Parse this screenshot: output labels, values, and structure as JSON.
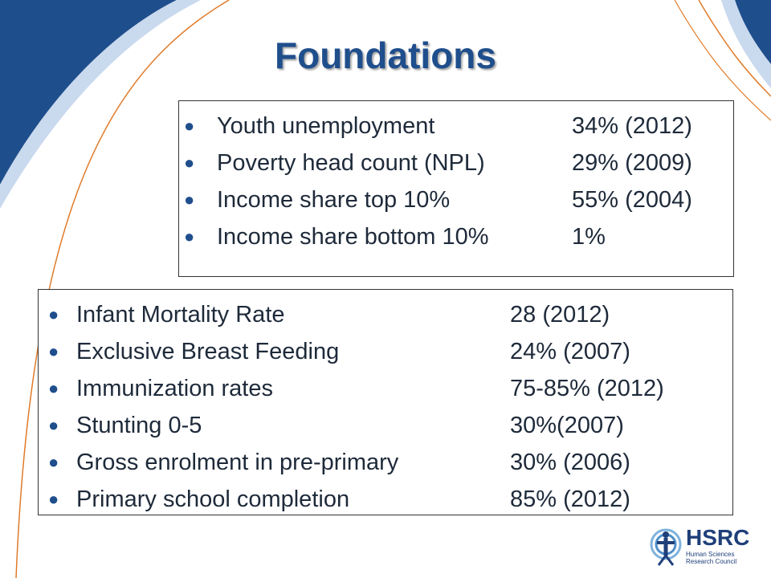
{
  "slide": {
    "title": "Foundations"
  },
  "box_top": {
    "items": [
      {
        "label": "Youth unemployment",
        "value": "34% (2012)"
      },
      {
        "label": "Poverty head count (NPL)",
        "value": "29% (2009)"
      },
      {
        "label": "Income share top 10%",
        "value": "55% (2004)"
      },
      {
        "label": "Income share bottom 10%",
        "value": "1%"
      }
    ]
  },
  "box_bottom": {
    "items": [
      {
        "label": "Infant Mortality Rate",
        "value": "28 (2012)"
      },
      {
        "label": "Exclusive Breast Feeding",
        "value": "24% (2007)"
      },
      {
        "label": "Immunization rates",
        "value": "75-85% (2012)"
      },
      {
        "label": "Stunting 0-5",
        "value": "30%(2007)"
      },
      {
        "label": "Gross enrolment in pre-primary",
        "value": "30% (2006)"
      },
      {
        "label": "Primary school completion",
        "value": "85% (2012)"
      }
    ]
  },
  "logo": {
    "name": "HSRC",
    "line1": "Human Sciences",
    "line2": "Research Council",
    "icon": "hsrc-emblem-icon"
  },
  "colors": {
    "accent_blue": "#1f4e8c",
    "swoosh_orange": "#e07b2a",
    "corner_blue": "#1f4e8c"
  }
}
